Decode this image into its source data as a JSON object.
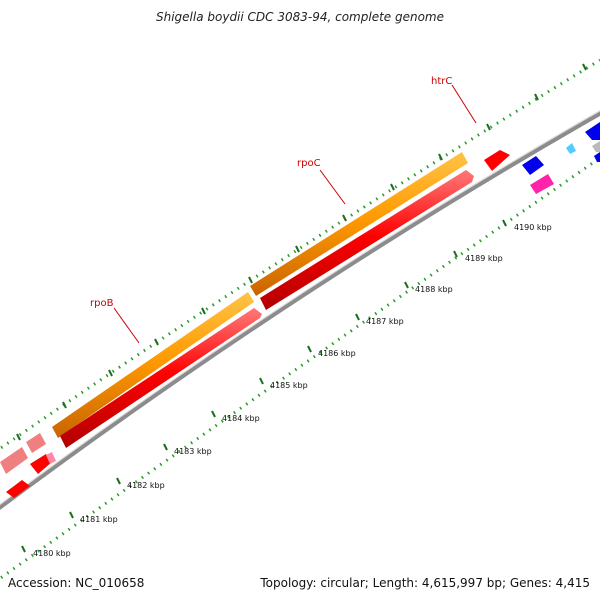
{
  "title": "Shigella boydii CDC 3083-94, complete genome",
  "footer": {
    "accession_label": "Accession: NC_010658",
    "summary": "Topology: circular; Length: 4,615,997 bp; Genes: 4,415"
  },
  "colors": {
    "backbone": "#8c8c8c",
    "minor_ticks": "#2a9a2a",
    "major_ticks": "#1e6e1e",
    "forward_cds": "#ff9900",
    "reverse_cds": "#ff0000",
    "label_text": "#cc0000",
    "blue_feature": "#0000ee",
    "magenta_feature": "#ff22aa",
    "light_red_feature": "#f08080",
    "cyan_feature": "#55ccff"
  },
  "scale_labels": [
    "4180 kbp",
    "4181 kbp",
    "4182 kbp",
    "4183 kbp",
    "4184 kbp",
    "4185 kbp",
    "4186 kbp",
    "4187 kbp",
    "4188 kbp",
    "4189 kbp",
    "4190 kbp"
  ],
  "gene_labels": [
    "rpoB",
    "rpoC",
    "htrC"
  ]
}
